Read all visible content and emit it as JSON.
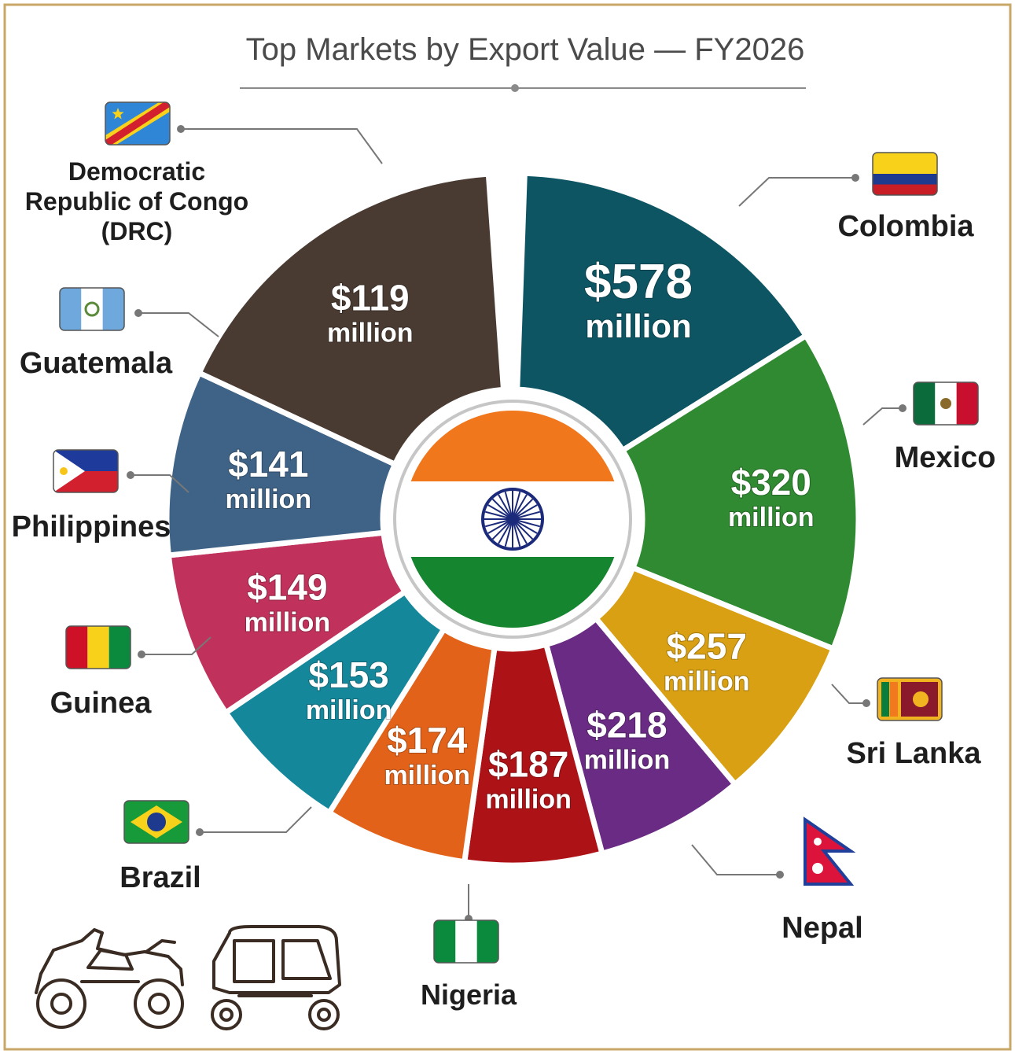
{
  "header": {
    "title": "Top Markets by Export Value — FY2026"
  },
  "center": {
    "flag": "india-flag"
  },
  "colors": {
    "border": "#c9a867",
    "leader": "#777777",
    "icon_stroke": "#3a2c22"
  },
  "icons": [
    "atv-icon",
    "auto-rickshaw-icon"
  ],
  "chart_data": {
    "type": "pie",
    "variant": "donut",
    "title": "Top Markets by Export Value — FY2026",
    "unit": "million",
    "categories": [
      "Colombia",
      "Mexico",
      "Sri Lanka",
      "Nepal",
      "Nigeria",
      "Brazil",
      "Guinea",
      "Philippines",
      "Guatemala",
      "Democratic Republic of Congo (DRC)"
    ],
    "values": [
      578,
      320,
      257,
      218,
      187,
      174,
      153,
      149,
      141,
      119
    ],
    "slices": [
      {
        "country": "Colombia",
        "value": 578,
        "amount": "$578",
        "unit": "million",
        "color": "#0d5563",
        "flag": "colombia-flag"
      },
      {
        "country": "Mexico",
        "value": 320,
        "amount": "$320",
        "unit": "million",
        "color": "#2f8a31",
        "flag": "mexico-flag"
      },
      {
        "country": "Sri Lanka",
        "value": 257,
        "amount": "$257",
        "unit": "million",
        "color": "#d8a012",
        "flag": "sri-lanka-flag"
      },
      {
        "country": "Nepal",
        "value": 218,
        "amount": "$218",
        "unit": "million",
        "color": "#6a2b84",
        "flag": "nepal-flag"
      },
      {
        "country": "Nigeria",
        "value": 187,
        "amount": "$187",
        "unit": "million",
        "color": "#ad1217",
        "flag": "nigeria-flag"
      },
      {
        "country": "Brazil",
        "value": 174,
        "amount": "$174",
        "unit": "million",
        "color": "#e2621a",
        "flag": "brazil-flag"
      },
      {
        "country": "Guinea",
        "value": 153,
        "amount": "$153",
        "unit": "million",
        "color": "#15879b",
        "flag": "guinea-flag"
      },
      {
        "country": "Philippines",
        "value": 149,
        "amount": "$149",
        "unit": "million",
        "color": "#c0325b",
        "flag": "philippines-flag"
      },
      {
        "country": "Guatemala",
        "value": 141,
        "amount": "$141",
        "unit": "million",
        "color": "#3f6387",
        "flag": "guatemala-flag"
      },
      {
        "country": "Democratic Republic of Congo (DRC)",
        "label_lines": [
          "Democratic",
          "Republic of Congo",
          "(DRC)"
        ],
        "value": 119,
        "amount": "$119",
        "unit": "million",
        "color": "#4a3b32",
        "flag": "drc-flag"
      }
    ]
  }
}
